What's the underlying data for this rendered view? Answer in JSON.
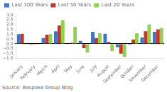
{
  "chart_data": {
    "type": "bar",
    "categories": [
      "January",
      "February",
      "March",
      "April",
      "May",
      "June",
      "July",
      "August",
      "September",
      "October",
      "November",
      "December"
    ],
    "series": [
      {
        "name": "Last 100 Years",
        "color": "#4472c4",
        "values": [
          1.0,
          -0.1,
          0.6,
          1.3,
          0.05,
          0.3,
          1.25,
          1.05,
          -0.35,
          -0.1,
          0.65,
          1.25
        ]
      },
      {
        "name": "Last 50 Years",
        "color": "#c0392b",
        "values": [
          1.05,
          -0.05,
          0.95,
          1.9,
          0.1,
          -0.45,
          0.6,
          0.2,
          -1.0,
          0.45,
          1.3,
          1.5
        ]
      },
      {
        "name": "Last 20 Years",
        "color": "#92d050",
        "values": [
          -0.05,
          -0.05,
          1.0,
          2.45,
          1.75,
          -0.9,
          1.1,
          -0.75,
          -1.35,
          1.1,
          2.0,
          1.65
        ]
      }
    ],
    "ylim": [
      -1.5,
      3.0
    ],
    "yticks": [
      {
        "value": -1.5,
        "label": "−1.5"
      },
      {
        "value": -1.0,
        "label": "−1.0"
      },
      {
        "value": -0.5,
        "label": "−0.5"
      },
      {
        "value": 0.0,
        "label": "0.0"
      },
      {
        "value": 0.5,
        "label": "0.5"
      },
      {
        "value": 1.0,
        "label": "1.0"
      },
      {
        "value": 1.5,
        "label": "1.5"
      },
      {
        "value": 2.0,
        "label": "2.0"
      },
      {
        "value": 2.5,
        "label": "2.5"
      },
      {
        "value": 3.0,
        "label": "3.0"
      }
    ],
    "grid": false,
    "legend": "top",
    "annotations": [
      "Source: Bespoke Group Blog"
    ]
  }
}
